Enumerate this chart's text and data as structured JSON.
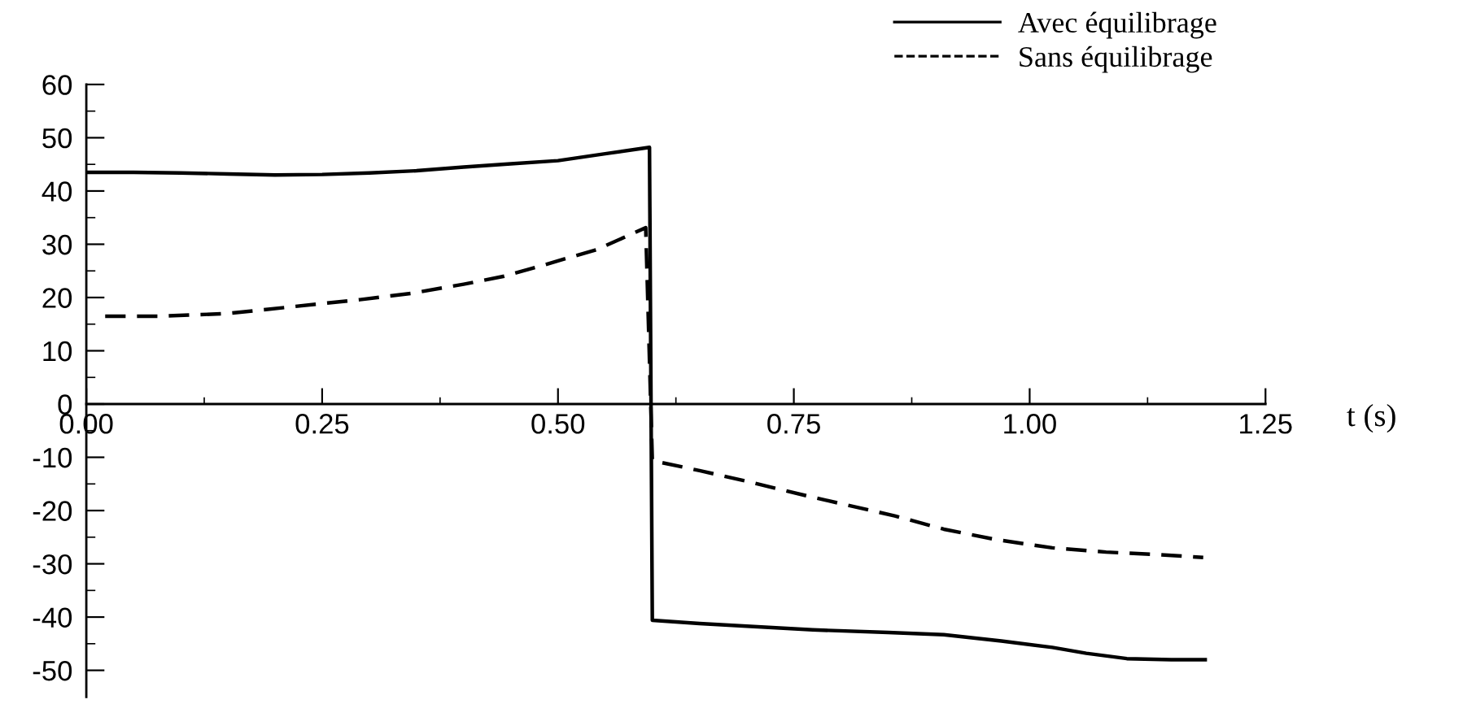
{
  "chart_data": {
    "type": "line",
    "xlabel": "t (s)",
    "legend": "top right",
    "grid": false,
    "marker": "none",
    "xlim": [
      0,
      1.25
    ],
    "ylim": [
      -55,
      60
    ],
    "xticks": [
      {
        "value": 0,
        "label": "0.00"
      },
      {
        "value": 0.125,
        "label": null
      },
      0.25,
      {
        "value": 0.375,
        "label": null
      },
      {
        "value": 0.5,
        "label": "0.50"
      },
      {
        "value": 0.625,
        "label": null
      },
      0.75,
      {
        "value": 0.875,
        "label": null
      },
      {
        "value": 1.0,
        "label": "1.00"
      },
      {
        "value": 1.125,
        "label": null
      },
      1.25
    ],
    "yticks": [
      -50,
      {
        "value": -45,
        "label": null
      },
      -40,
      {
        "value": -35,
        "label": null
      },
      -30,
      {
        "value": -25,
        "label": null
      },
      -20,
      {
        "value": -15,
        "label": null
      },
      -10,
      {
        "value": -5,
        "label": null
      },
      0,
      {
        "value": 5,
        "label": null
      },
      10,
      {
        "value": 15,
        "label": null
      },
      20,
      {
        "value": 25,
        "label": null
      },
      30,
      {
        "value": 35,
        "label": null
      },
      40,
      {
        "value": 45,
        "label": null
      },
      50,
      {
        "value": 55,
        "label": null
      },
      60
    ],
    "series": [
      {
        "name": "Avec équilibrage",
        "color": "#000000",
        "line_style": "solid",
        "x": [
          0,
          0.05,
          0.1,
          0.15,
          0.2,
          0.25,
          0.3,
          0.35,
          0.4,
          0.45,
          0.5,
          0.55,
          0.597,
          0.6,
          0.65,
          0.7,
          0.77,
          0.85,
          0.909,
          0.97,
          1.024,
          1.06,
          1.103,
          1.15,
          1.188
        ],
        "values": [
          43.5,
          43.5,
          43.4,
          43.2,
          43.0,
          43.1,
          43.4,
          43.8,
          44.5,
          45.1,
          45.7,
          47.0,
          48.2,
          -40.6,
          -41.2,
          -41.7,
          -42.4,
          -42.9,
          -43.3,
          -44.5,
          -45.7,
          -46.8,
          -47.8,
          -48.0,
          -48.0
        ]
      },
      {
        "name": "Sans équilibrage",
        "color": "#000000",
        "line_style": "dashed",
        "x": [
          0.02,
          0.08,
          0.15,
          0.22,
          0.29,
          0.345,
          0.4,
          0.443,
          0.483,
          0.541,
          0.593,
          0.6,
          0.61,
          0.65,
          0.7,
          0.77,
          0.857,
          0.909,
          0.966,
          1.024,
          1.081,
          1.138,
          1.184
        ],
        "values": [
          16.5,
          16.5,
          17.0,
          18.3,
          19.6,
          20.8,
          22.5,
          24.0,
          26.0,
          29.0,
          33.1,
          -10.5,
          -11.0,
          -12.5,
          -14.5,
          -17.5,
          -21.0,
          -23.5,
          -25.5,
          -27.0,
          -27.8,
          -28.3,
          -28.8
        ]
      }
    ]
  }
}
